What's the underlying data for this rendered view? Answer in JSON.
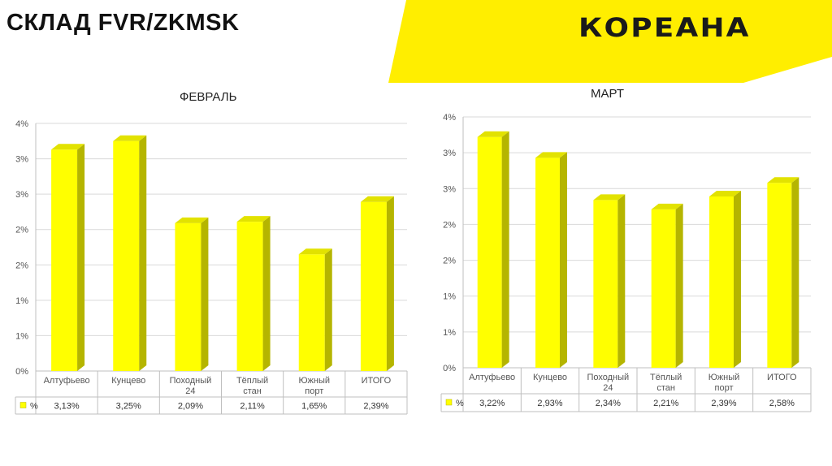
{
  "slide": {
    "title": "СКЛАД FVR/ZKMSK",
    "logo_text": "КОРЕАНА",
    "accent_color": "#FFEE00"
  },
  "chart_data": [
    {
      "type": "bar",
      "title": "ФЕВРАЛЬ",
      "categories": [
        "Алтуфьево",
        "Кунцево",
        "Походный 24",
        "Тёплый стан",
        "Южный порт",
        "ИТОГО"
      ],
      "series": [
        {
          "name": "%",
          "values": [
            3.13,
            3.25,
            2.09,
            2.11,
            1.65,
            2.39
          ],
          "labels": [
            "3,13%",
            "3,25%",
            "2,09%",
            "2,11%",
            "1,65%",
            "2,39%"
          ]
        }
      ],
      "y_tick_labels": [
        "0%",
        "1%",
        "1%",
        "2%",
        "2%",
        "3%",
        "3%",
        "4%"
      ],
      "ylim": [
        0,
        3.5
      ],
      "grid": true,
      "color": "#FFFF00"
    },
    {
      "type": "bar",
      "title": "МАРТ",
      "categories": [
        "Алтуфьево",
        "Кунцево",
        "Походный 24",
        "Тёплый стан",
        "Южный порт",
        "ИТОГО"
      ],
      "series": [
        {
          "name": "%",
          "values": [
            3.22,
            2.93,
            2.34,
            2.21,
            2.39,
            2.58
          ],
          "labels": [
            "3,22%",
            "2,93%",
            "2,34%",
            "2,21%",
            "2,39%",
            "2,58%"
          ]
        }
      ],
      "y_tick_labels": [
        "0%",
        "1%",
        "1%",
        "2%",
        "2%",
        "3%",
        "3%",
        "4%"
      ],
      "ylim": [
        0,
        3.5
      ],
      "grid": true,
      "color": "#FFFF00"
    }
  ]
}
